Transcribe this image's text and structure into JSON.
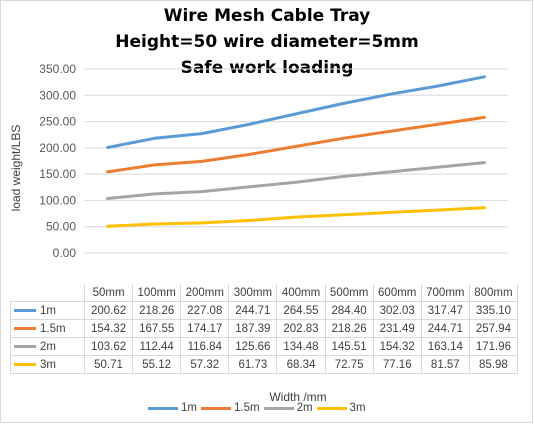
{
  "chart_data": {
    "type": "line",
    "title_lines": [
      "Wire Mesh Cable Tray",
      "Height=50  wire diameter=5mm",
      "Safe work loading"
    ],
    "xlabel": "Width /mm",
    "ylabel": "load weight/LBS",
    "categories": [
      "50mm",
      "100mm",
      "200mm",
      "300mm",
      "400mm",
      "500mm",
      "600mm",
      "700mm",
      "800mm"
    ],
    "y_ticks": [
      "0.00",
      "50.00",
      "100.00",
      "150.00",
      "200.00",
      "250.00",
      "300.00",
      "350.00"
    ],
    "ylim": [
      0,
      350
    ],
    "grid": true,
    "legend_position": "bottom",
    "data_table": true,
    "series": [
      {
        "name": "1m",
        "color": "#5b9bd5",
        "values": [
          200.62,
          218.26,
          227.08,
          244.71,
          264.55,
          284.4,
          302.03,
          317.47,
          335.1
        ],
        "labels": [
          "200.62",
          "218.26",
          "227.08",
          "244.71",
          "264.55",
          "284.40",
          "302.03",
          "317.47",
          "335.10"
        ]
      },
      {
        "name": "1.5m",
        "color": "#ed7d31",
        "values": [
          154.32,
          167.55,
          174.17,
          187.39,
          202.83,
          218.26,
          231.49,
          244.71,
          257.94
        ],
        "labels": [
          "154.32",
          "167.55",
          "174.17",
          "187.39",
          "202.83",
          "218.26",
          "231.49",
          "244.71",
          "257.94"
        ]
      },
      {
        "name": "2m",
        "color": "#a5a5a5",
        "values": [
          103.62,
          112.44,
          116.84,
          125.66,
          134.48,
          145.51,
          154.32,
          163.14,
          171.96
        ],
        "labels": [
          "103.62",
          "112.44",
          "116.84",
          "125.66",
          "134.48",
          "145.51",
          "154.32",
          "163.14",
          "171.96"
        ]
      },
      {
        "name": "3m",
        "color": "#ffc000",
        "values": [
          50.71,
          55.12,
          57.32,
          61.73,
          68.34,
          72.75,
          77.16,
          81.57,
          85.98
        ],
        "labels": [
          "50.71",
          "55.12",
          "57.32",
          "61.73",
          "68.34",
          "72.75",
          "77.16",
          "81.57",
          "85.98"
        ]
      }
    ]
  }
}
